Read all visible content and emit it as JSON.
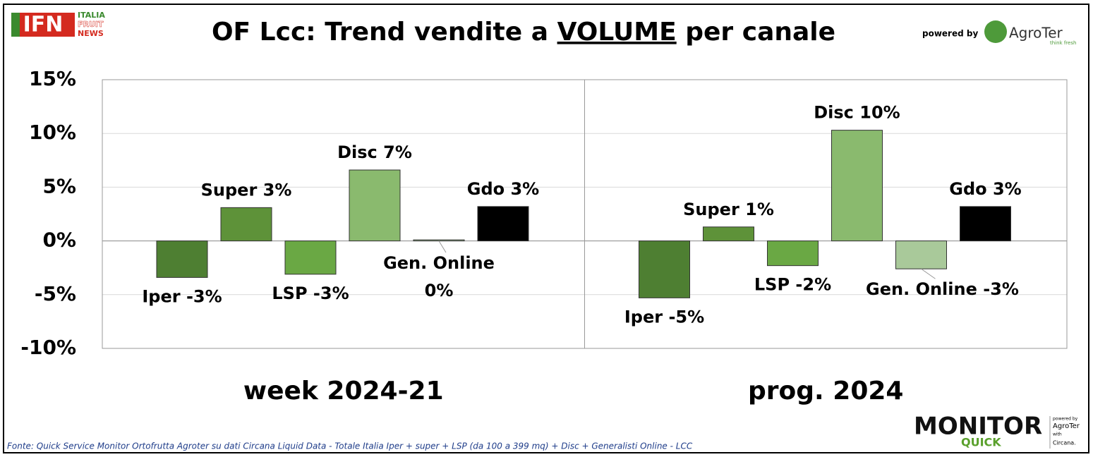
{
  "chart_data": {
    "type": "grouped-bar",
    "title": [
      "OF Lcc: Trend vendite a",
      "VOLUME",
      "per canale"
    ],
    "categories": [
      "week 2024-21",
      "prog. 2024"
    ],
    "series": [
      {
        "name": "Iper",
        "color": "#4e7f32",
        "values": [
          -3.4,
          -5.3
        ],
        "value_labels": [
          "-3%",
          "-5%"
        ]
      },
      {
        "name": "Super",
        "color": "#5e9239",
        "values": [
          3.1,
          1.3
        ],
        "value_labels": [
          "3%",
          "1%"
        ]
      },
      {
        "name": "LSP",
        "color": "#6aa844",
        "values": [
          -3.1,
          -2.3
        ],
        "value_labels": [
          "-3%",
          "-2%"
        ]
      },
      {
        "name": "Disc",
        "color": "#8aba6e",
        "values": [
          6.6,
          10.3
        ],
        "value_labels": [
          "7%",
          "10%"
        ]
      },
      {
        "name": "Gen. Online",
        "color": "#a9c99a",
        "values": [
          0.1,
          -2.6
        ],
        "value_labels": [
          "0%",
          "-3%"
        ]
      },
      {
        "name": "Gdo",
        "color": "#000000",
        "values": [
          3.2,
          3.2
        ],
        "value_labels": [
          "3%",
          "3%"
        ]
      }
    ],
    "ylim": [
      -10,
      15
    ],
    "yticks": [
      {
        "value": -10,
        "label": "-10%"
      },
      {
        "value": -5,
        "label": "-5%"
      },
      {
        "value": 0,
        "label": "0%"
      },
      {
        "value": 5,
        "label": "5%"
      },
      {
        "value": 10,
        "label": "10%"
      },
      {
        "value": 15,
        "label": "15%"
      }
    ],
    "grid": true,
    "source": "Fonte: Quick Service Monitor Ortofrutta Agroter su dati Circana Liquid Data - Totale Italia Iper + super + LSP (da 100 a 399 mq) + Disc + Generalisti Online - LCC"
  },
  "logos": {
    "ifn": [
      "IFN",
      "ITALIA",
      "FRUIT",
      "NEWS"
    ],
    "powered_by": "powered by",
    "agroter": "AgroTer",
    "agroter_tag": "think fresh",
    "monitor": [
      "MONITOR",
      "QUICK"
    ],
    "monitor_side": [
      "powered by",
      "AgroTer",
      "with",
      "Circana."
    ]
  }
}
